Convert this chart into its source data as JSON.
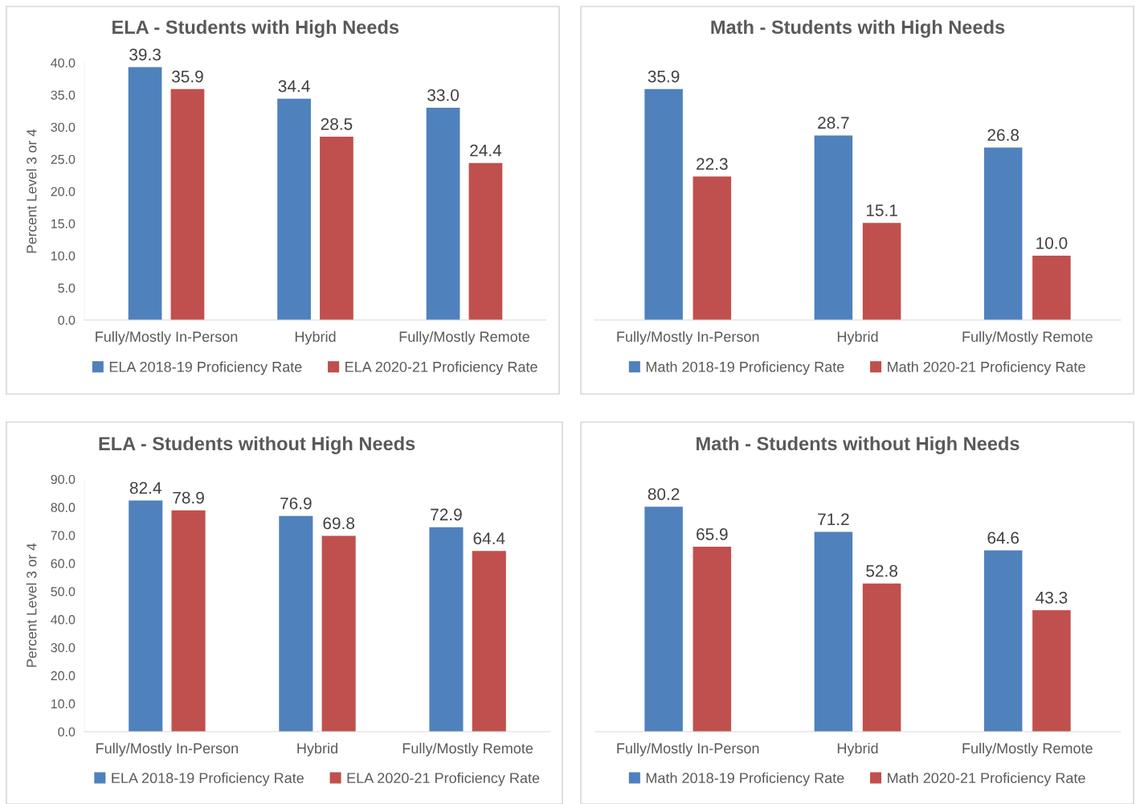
{
  "chart_data": [
    {
      "type": "bar",
      "title": "ELA - Students with High Needs",
      "ylabel": "Percent Level 3 or 4",
      "categories": [
        "Fully/Mostly In-Person",
        "Hybrid",
        "Fully/Mostly Remote"
      ],
      "series": [
        {
          "name": "ELA 2018-19 Proficiency Rate",
          "color": "#4f81bd",
          "values": [
            39.3,
            34.4,
            33.0
          ]
        },
        {
          "name": "ELA 2020-21 Proficiency Rate",
          "color": "#c0504d",
          "values": [
            35.9,
            28.5,
            24.4
          ]
        }
      ],
      "ylim": [
        0,
        40
      ],
      "yticks": [
        {
          "value": 0,
          "label": "0.0"
        },
        {
          "value": 5,
          "label": "5.0"
        },
        {
          "value": 10,
          "label": "10.0"
        },
        {
          "value": 15,
          "label": "15.0"
        },
        {
          "value": 20,
          "label": "20.0"
        },
        {
          "value": 25,
          "label": "25.0"
        },
        {
          "value": 30,
          "label": "30.0"
        },
        {
          "value": 35,
          "label": "35.0"
        },
        {
          "value": 40,
          "label": "40.0"
        }
      ],
      "value_labels": [
        [
          "39.3",
          "34.4",
          "33.0"
        ],
        [
          "35.9",
          "28.5",
          "24.4"
        ]
      ],
      "legend": "bottom",
      "grid": false
    },
    {
      "type": "bar",
      "title": "Math - Students with High Needs",
      "categories": [
        "Fully/Mostly In-Person",
        "Hybrid",
        "Fully/Mostly Remote"
      ],
      "series": [
        {
          "name": "Math 2018-19 Proficiency Rate",
          "color": "#4f81bd",
          "values": [
            35.9,
            28.7,
            26.8
          ]
        },
        {
          "name": "Math 2020-21 Proficiency Rate",
          "color": "#c0504d",
          "values": [
            22.3,
            15.1,
            10.0
          ]
        }
      ],
      "ylim": [
        0,
        40
      ],
      "tick_labels": "x",
      "value_labels": [
        [
          "35.9",
          "28.7",
          "26.8"
        ],
        [
          "22.3",
          "15.1",
          "10.0"
        ]
      ],
      "legend": "bottom",
      "grid": false
    },
    {
      "type": "bar",
      "title": "ELA - Students without High Needs",
      "ylabel": "Percent Level 3 or 4",
      "categories": [
        "Fully/Mostly In-Person",
        "Hybrid",
        "Fully/Mostly Remote"
      ],
      "series": [
        {
          "name": "ELA 2018-19 Proficiency Rate",
          "color": "#4f81bd",
          "values": [
            82.4,
            76.9,
            72.9
          ]
        },
        {
          "name": "ELA 2020-21 Proficiency Rate",
          "color": "#c0504d",
          "values": [
            78.9,
            69.8,
            64.4
          ]
        }
      ],
      "ylim": [
        0,
        90
      ],
      "yticks": [
        {
          "value": 0,
          "label": "0.0"
        },
        {
          "value": 10,
          "label": "10.0"
        },
        {
          "value": 20,
          "label": "20.0"
        },
        {
          "value": 30,
          "label": "30.0"
        },
        {
          "value": 40,
          "label": "40.0"
        },
        {
          "value": 50,
          "label": "50.0"
        },
        {
          "value": 60,
          "label": "60.0"
        },
        {
          "value": 70,
          "label": "70.0"
        },
        {
          "value": 80,
          "label": "80.0"
        },
        {
          "value": 90,
          "label": "90.0"
        }
      ],
      "value_labels": [
        [
          "82.4",
          "76.9",
          "72.9"
        ],
        [
          "78.9",
          "69.8",
          "64.4"
        ]
      ],
      "legend": "bottom",
      "grid": false
    },
    {
      "type": "bar",
      "title": "Math - Students without High Needs",
      "categories": [
        "Fully/Mostly In-Person",
        "Hybrid",
        "Fully/Mostly Remote"
      ],
      "series": [
        {
          "name": "Math 2018-19 Proficiency Rate",
          "color": "#4f81bd",
          "values": [
            80.2,
            71.2,
            64.6
          ]
        },
        {
          "name": "Math 2020-21 Proficiency Rate",
          "color": "#c0504d",
          "values": [
            65.9,
            52.8,
            43.3
          ]
        }
      ],
      "ylim": [
        0,
        90
      ],
      "tick_labels": "x",
      "value_labels": [
        [
          "80.2",
          "71.2",
          "64.6"
        ],
        [
          "65.9",
          "52.8",
          "43.3"
        ]
      ],
      "legend": "bottom",
      "grid": false
    }
  ]
}
